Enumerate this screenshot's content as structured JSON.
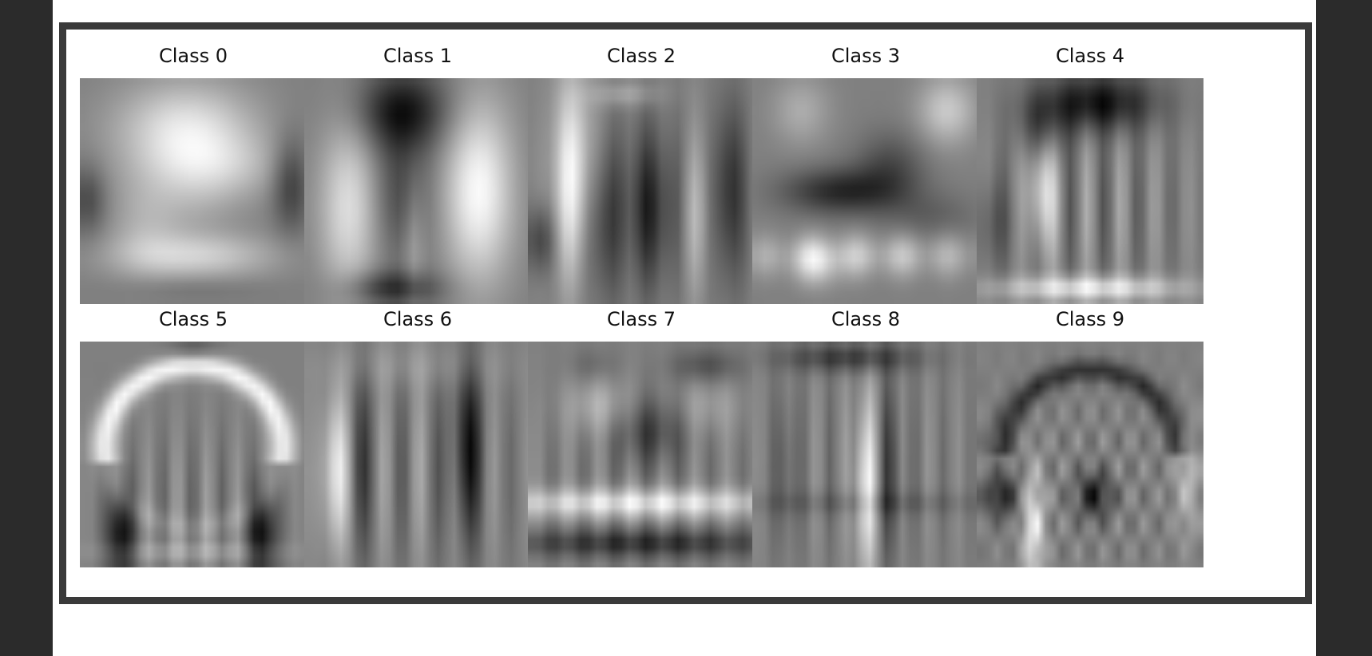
{
  "figure": {
    "panels": [
      {
        "title": "Class 0",
        "pattern": "shirt-bright-top"
      },
      {
        "title": "Class 1",
        "pattern": "trouser-vertical-lobes"
      },
      {
        "title": "Class 2",
        "pattern": "mixed-vertical-stripes"
      },
      {
        "title": "Class 3",
        "pattern": "dress-horizontal-band"
      },
      {
        "title": "Class 4",
        "pattern": "coat-faint-stripes"
      },
      {
        "title": "Class 5",
        "pattern": "sandal-arch"
      },
      {
        "title": "Class 6",
        "pattern": "shirt-dark-stripes"
      },
      {
        "title": "Class 7",
        "pattern": "sneaker-horizontal-bands"
      },
      {
        "title": "Class 8",
        "pattern": "bag-center-line"
      },
      {
        "title": "Class 9",
        "pattern": "boot-arch-lattice"
      }
    ]
  },
  "colors": {
    "viewer_background": "#2b2b2b",
    "page_background": "#ffffff",
    "frame_border": "#3a3a3a",
    "title_text": "#111111"
  }
}
